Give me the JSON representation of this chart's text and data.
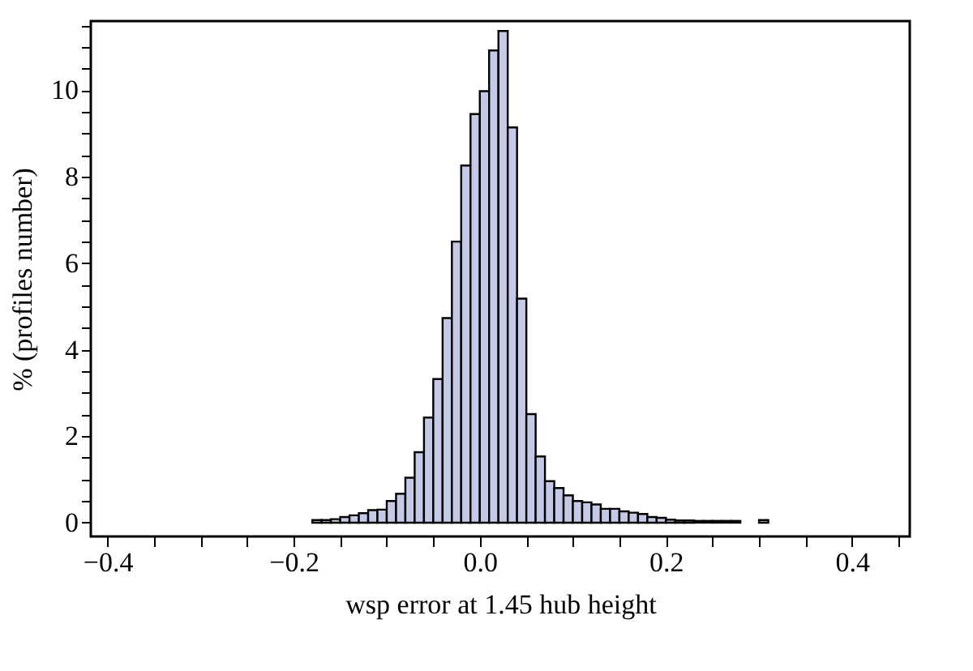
{
  "chart_data": {
    "type": "histogram",
    "xlabel": "wsp error at 1.45 hub height",
    "ylabel": "% (profiles number)",
    "bins": [
      -0.18,
      -0.17,
      -0.16,
      -0.15,
      -0.14,
      -0.13,
      -0.12,
      -0.11,
      -0.1,
      -0.09,
      -0.08,
      -0.07,
      -0.06,
      -0.05,
      -0.04,
      -0.03,
      -0.02,
      -0.01,
      0,
      0.01,
      0.02,
      0.03,
      0.04,
      0.05,
      0.06,
      0.07,
      0.08,
      0.09,
      0.1,
      0.11,
      0.12,
      0.13,
      0.14,
      0.15,
      0.16,
      0.17,
      0.18,
      0.19,
      0.2,
      0.21,
      0.22,
      0.23,
      0.24,
      0.25,
      0.26,
      0.27,
      0.28,
      0.29,
      0.3,
      0.31
    ],
    "values": [
      0.06,
      0.06,
      0.08,
      0.13,
      0.17,
      0.22,
      0.29,
      0.3,
      0.5,
      0.67,
      1.04,
      1.63,
      2.43,
      3.32,
      4.73,
      6.5,
      8.26,
      9.45,
      9.98,
      10.92,
      11.37,
      9.14,
      5.18,
      2.51,
      1.53,
      0.96,
      0.8,
      0.63,
      0.5,
      0.47,
      0.42,
      0.32,
      0.32,
      0.26,
      0.23,
      0.2,
      0.13,
      0.11,
      0.07,
      0.05,
      0.05,
      0.04,
      0.04,
      0.04,
      0.04,
      0.04,
      0,
      0,
      0.06
    ],
    "color": "#c5c9e8",
    "xlim": [
      -0.418,
      0.462
    ],
    "ylim": [
      -0.32,
      11.6
    ],
    "xticks": [
      {
        "value": -0.4,
        "label": "−0.4"
      },
      {
        "value": -0.35,
        "label": null
      },
      {
        "value": -0.3,
        "label": null
      },
      {
        "value": -0.25,
        "label": null
      },
      {
        "value": -0.2,
        "label": "−0.2"
      },
      {
        "value": -0.15,
        "label": null
      },
      {
        "value": -0.1,
        "label": null
      },
      {
        "value": -0.05,
        "label": null
      },
      {
        "value": 0,
        "label": "0.0"
      },
      {
        "value": 0.05,
        "label": null
      },
      {
        "value": 0.1,
        "label": null
      },
      {
        "value": 0.15,
        "label": null
      },
      {
        "value": 0.2,
        "label": "0.2"
      },
      {
        "value": 0.25,
        "label": null
      },
      {
        "value": 0.3,
        "label": null
      },
      {
        "value": 0.35,
        "label": null
      },
      {
        "value": 0.4,
        "label": "0.4"
      },
      {
        "value": 0.45,
        "label": null
      }
    ],
    "yticks": [
      0,
      {
        "value": 0.5,
        "label": null
      },
      {
        "value": 1,
        "label": null
      },
      {
        "value": 1.5,
        "label": null
      },
      2,
      {
        "value": 2.5,
        "label": null
      },
      {
        "value": 3,
        "label": null
      },
      {
        "value": 3.5,
        "label": null
      },
      4,
      {
        "value": 4.5,
        "label": null
      },
      {
        "value": 5,
        "label": null
      },
      {
        "value": 5.5,
        "label": null
      },
      6,
      {
        "value": 6.5,
        "label": null
      },
      {
        "value": 7,
        "label": null
      },
      {
        "value": 7.5,
        "label": null
      },
      8,
      {
        "value": 8.5,
        "label": null
      },
      {
        "value": 9,
        "label": null
      },
      {
        "value": 9.5,
        "label": null
      },
      10,
      {
        "value": 10.5,
        "label": null
      },
      {
        "value": 11,
        "label": null
      },
      {
        "value": 11.5,
        "label": null
      }
    ],
    "grid": false
  }
}
